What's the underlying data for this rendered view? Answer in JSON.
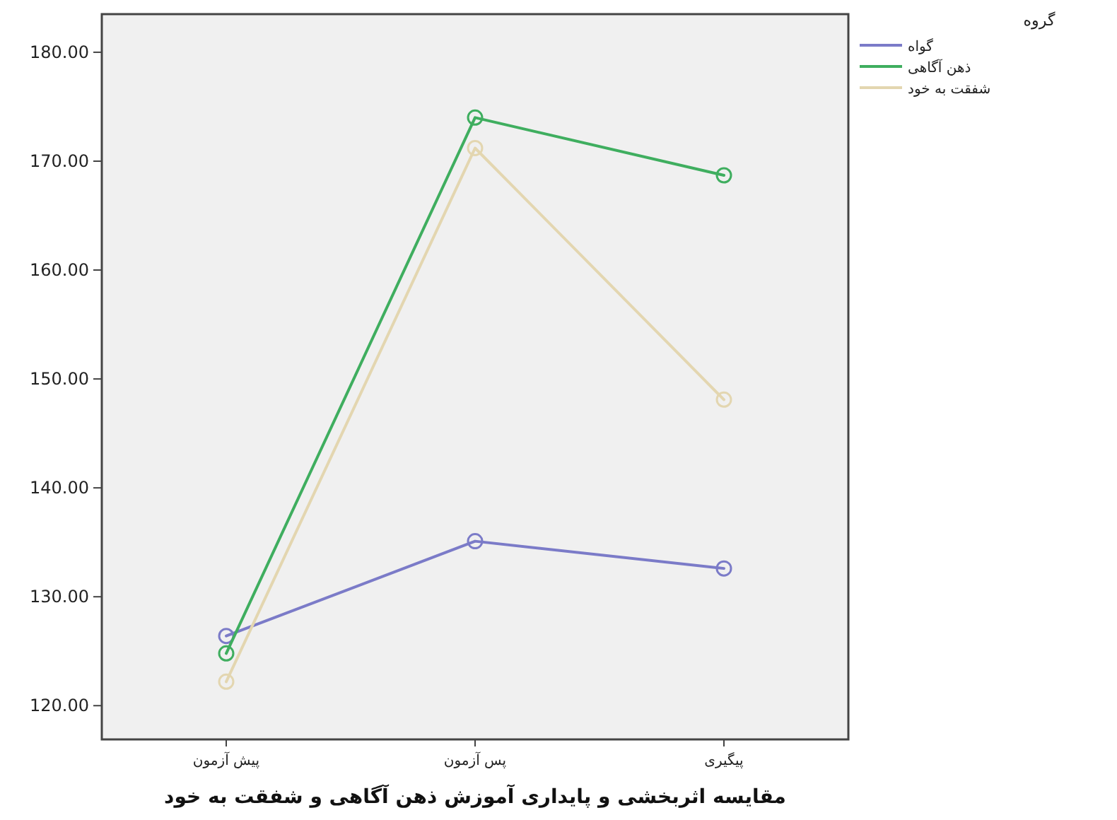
{
  "chart_data": {
    "type": "line",
    "xlabel": "مقایسه اثربخشی و پایداری آموزش ذهن آگاهی و شفقت به خود",
    "legend_title": "گروه",
    "categories": [
      "پیش آزمون",
      "پس آزمون",
      "پیگیری"
    ],
    "series": [
      {
        "name": "گواه",
        "color": "#7b7bc8",
        "values": [
          126.4,
          135.1,
          132.6
        ]
      },
      {
        "name": "ذهن آگاهی",
        "color": "#3fae5f",
        "values": [
          124.8,
          174.0,
          168.7
        ]
      },
      {
        "name": "شفقت به خود",
        "color": "#e3d6b0",
        "values": [
          122.2,
          171.2,
          148.1
        ]
      }
    ],
    "ylim": [
      116.9,
      183.5
    ],
    "yticks": [
      {
        "value": 120,
        "label": "120.00"
      },
      {
        "value": 130,
        "label": "130.00"
      },
      {
        "value": 140,
        "label": "140.00"
      },
      {
        "value": 150,
        "label": "150.00"
      },
      {
        "value": 160,
        "label": "160.00"
      },
      {
        "value": 170,
        "label": "170.00"
      },
      {
        "value": 180,
        "label": "180.00"
      }
    ],
    "marker": "circle",
    "line_style": "solid",
    "legend": "top right"
  }
}
